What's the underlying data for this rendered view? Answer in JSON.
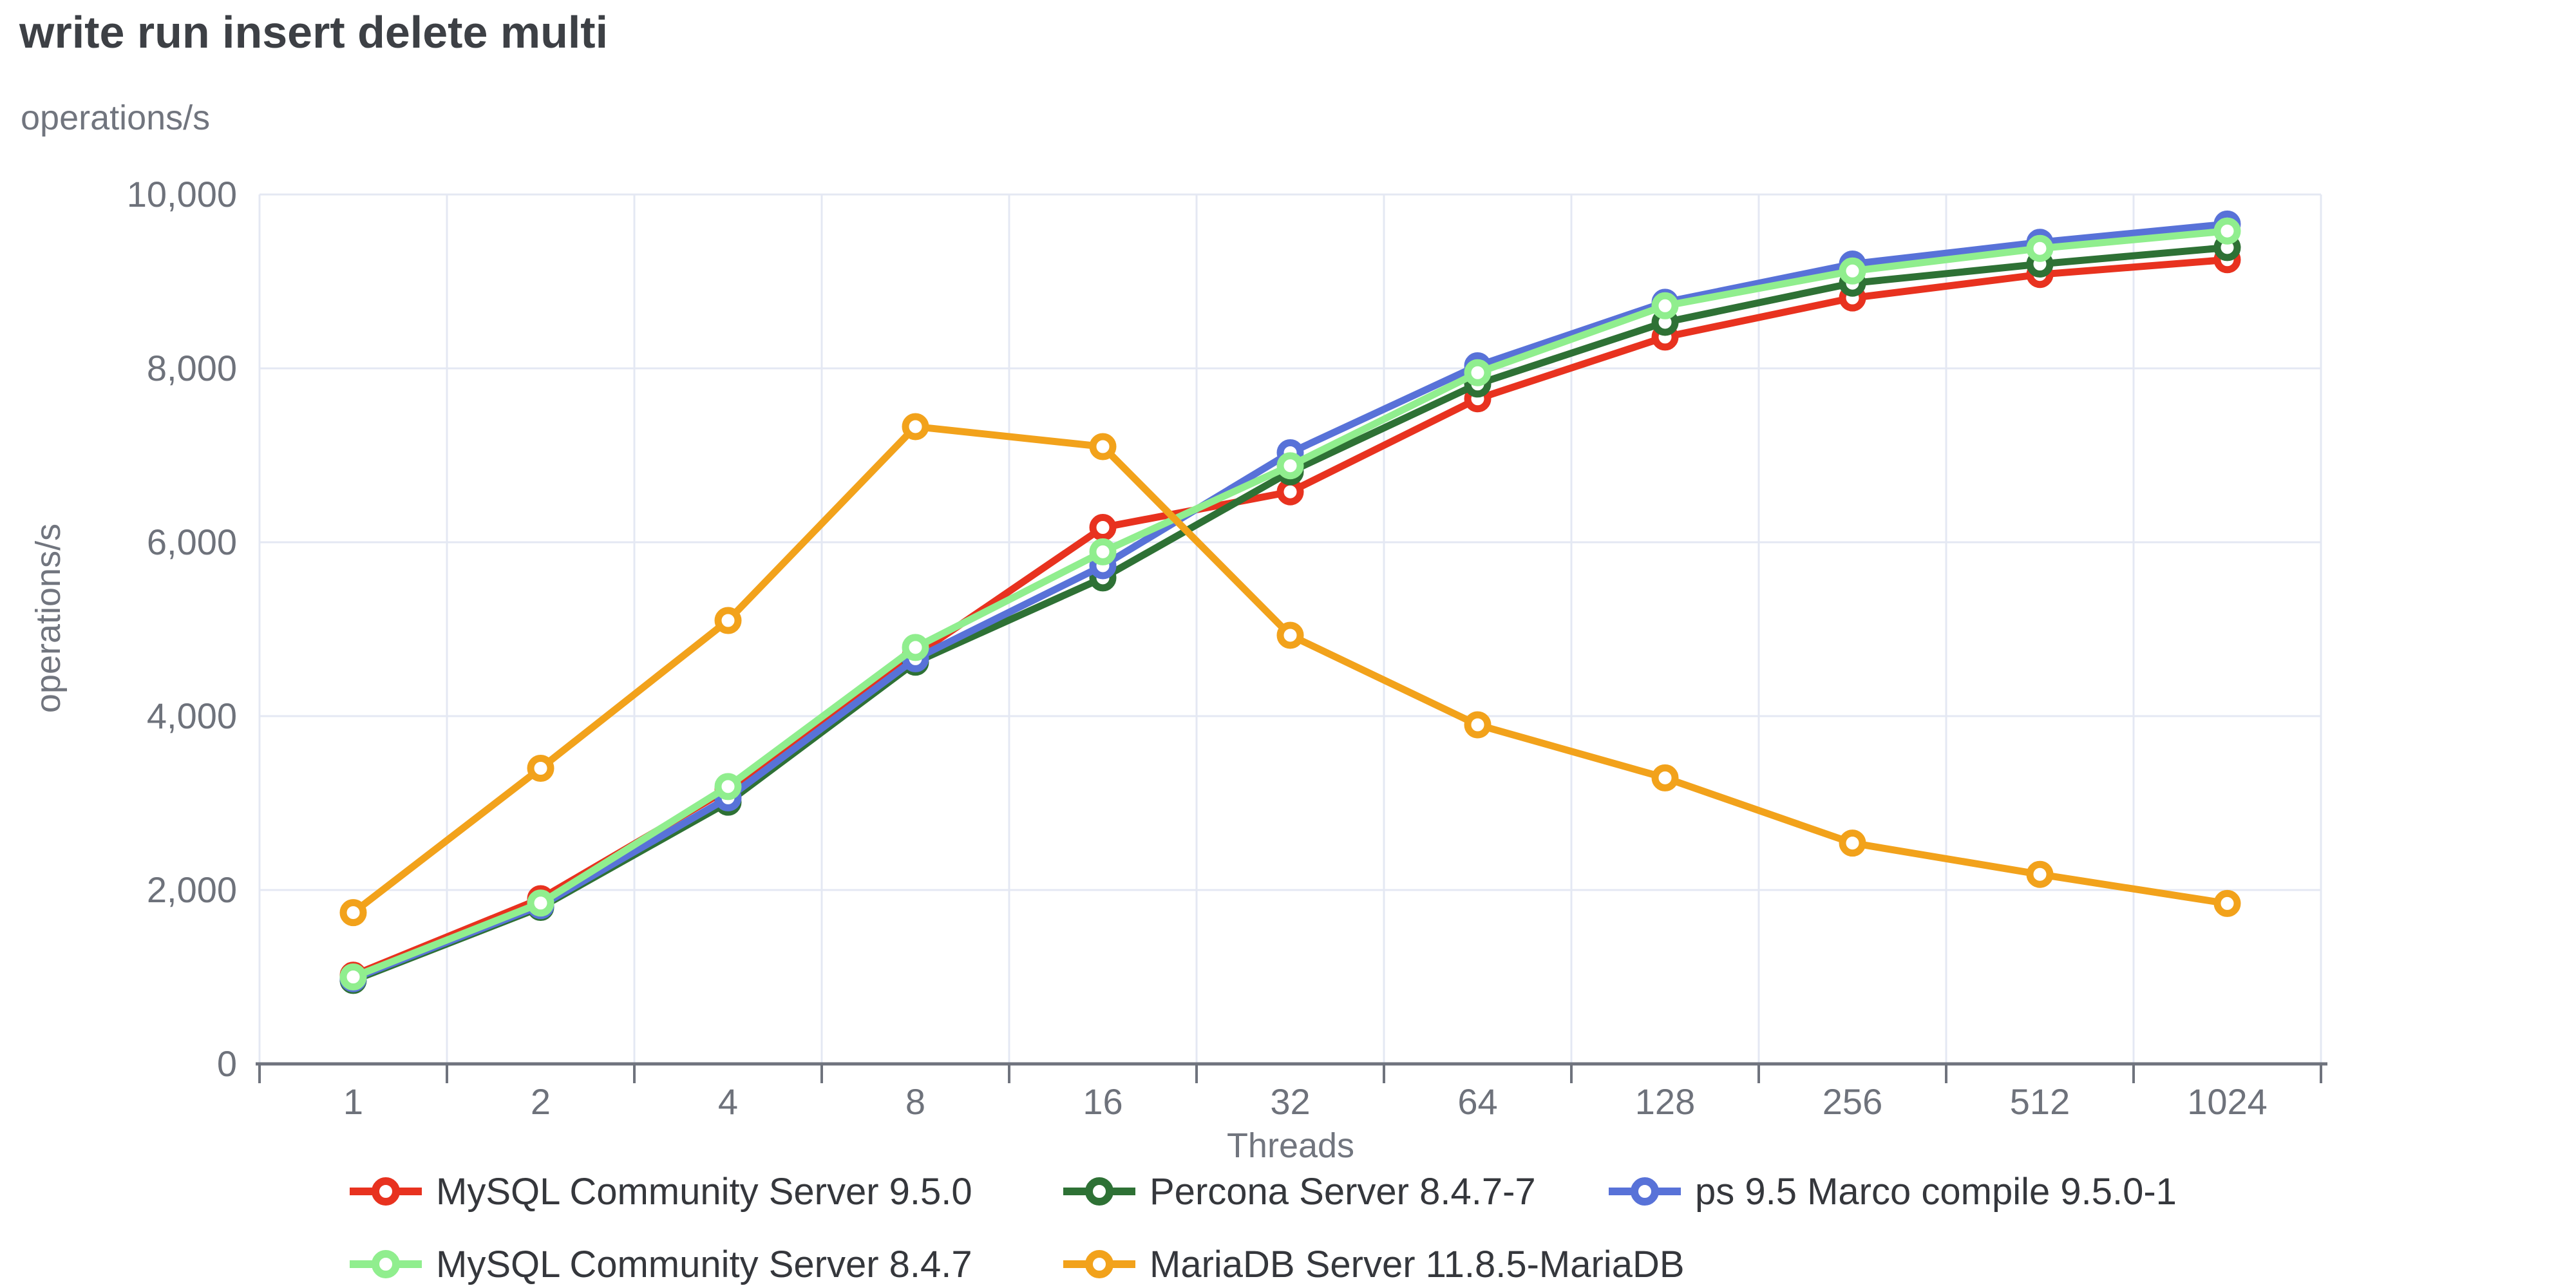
{
  "chart_data": {
    "type": "line",
    "title": "write run insert delete multi",
    "ylabel": "operations/s",
    "xlabel": "Threads",
    "categories": [
      "1",
      "2",
      "4",
      "8",
      "16",
      "32",
      "64",
      "128",
      "256",
      "512",
      "1024"
    ],
    "y_ticks": {
      "values": [
        0,
        2000,
        4000,
        6000,
        8000,
        10000
      ],
      "labels": [
        "0",
        "2,000",
        "4,000",
        "6,000",
        "8,000",
        "10,000"
      ]
    },
    "ylim": [
      0,
      10000
    ],
    "grid": true,
    "legend_position": "bottom",
    "series": [
      {
        "name": "MySQL Community Server 9.5.0",
        "color": "#e8321f",
        "values": [
          1020,
          1900,
          3160,
          4700,
          6170,
          6580,
          7650,
          8360,
          8810,
          9080,
          9250
        ]
      },
      {
        "name": "Percona Server 8.4.7-7",
        "color": "#2e7135",
        "values": [
          960,
          1800,
          3010,
          4620,
          5590,
          6810,
          7820,
          8530,
          8980,
          9200,
          9390
        ]
      },
      {
        "name": "ps 9.5 Marco compile 9.5.0-1",
        "color": "#5872d8",
        "values": [
          980,
          1820,
          3060,
          4660,
          5730,
          7030,
          8030,
          8760,
          9200,
          9450,
          9660
        ]
      },
      {
        "name": "MySQL Community Server 8.4.7",
        "color": "#90ee8e",
        "values": [
          1000,
          1850,
          3190,
          4790,
          5890,
          6880,
          7950,
          8720,
          9120,
          9380,
          9580
        ]
      },
      {
        "name": "MariaDB Server 11.8.5-MariaDB",
        "color": "#f2a21b",
        "values": [
          1740,
          3400,
          5100,
          7330,
          7100,
          4930,
          3900,
          3290,
          2540,
          2180,
          1845
        ]
      }
    ],
    "legend_rows": [
      [
        0,
        1,
        2
      ],
      [
        3,
        4
      ]
    ],
    "colors": {
      "background": "#ffffff",
      "gridline": "#e4e8f3",
      "axis": "#6f737d",
      "tick_text": "#6e727b",
      "title_text": "#3d4045",
      "axis_label_text": "#71757e",
      "legend_text": "#35373c"
    }
  }
}
